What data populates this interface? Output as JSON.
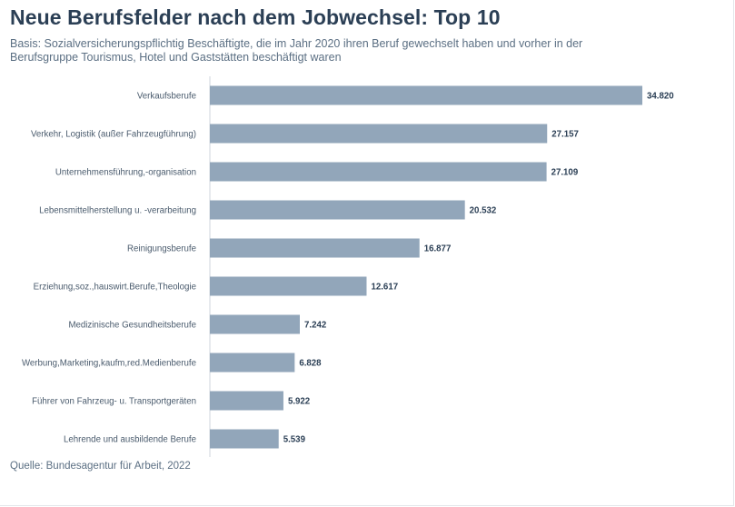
{
  "chart_data": {
    "type": "bar",
    "orientation": "horizontal",
    "title": "Neue Berufsfelder nach dem Jobwechsel: Top 10",
    "subtitle": "Basis: Sozialversicherungspflichtig Beschäftigte, die im Jahr 2020 ihren Beruf gewechselt haben und vorher in der Berufsgruppe Tourismus, Hotel und Gaststätten beschäftigt waren",
    "source": "Quelle: Bundesagentur für Arbeit, 2022",
    "categories": [
      "Verkaufsberufe",
      "Verkehr, Logistik (außer Fahrzeugführung)",
      "Unternehmensführung,-organisation",
      "Lebensmittelherstellung u. -verarbeitung",
      "Reinigungsberufe",
      "Erziehung,soz.,hauswirt.Berufe,Theologie",
      "Medizinische Gesundheitsberufe",
      "Werbung,Marketing,kaufm,red.Medienberufe",
      "Führer von Fahrzeug- u. Transportgeräten",
      "Lehrende und ausbildende Berufe"
    ],
    "values": [
      34820,
      27157,
      27109,
      20532,
      16877,
      12617,
      7242,
      6828,
      5922,
      5539
    ],
    "value_labels": [
      "34.820",
      "27.157",
      "27.109",
      "20.532",
      "16.877",
      "12.617",
      "7.242",
      "6.828",
      "5.922",
      "5.539"
    ],
    "xlim": [
      0,
      35000
    ],
    "grid": false,
    "bar_color": "#92a6ba"
  }
}
